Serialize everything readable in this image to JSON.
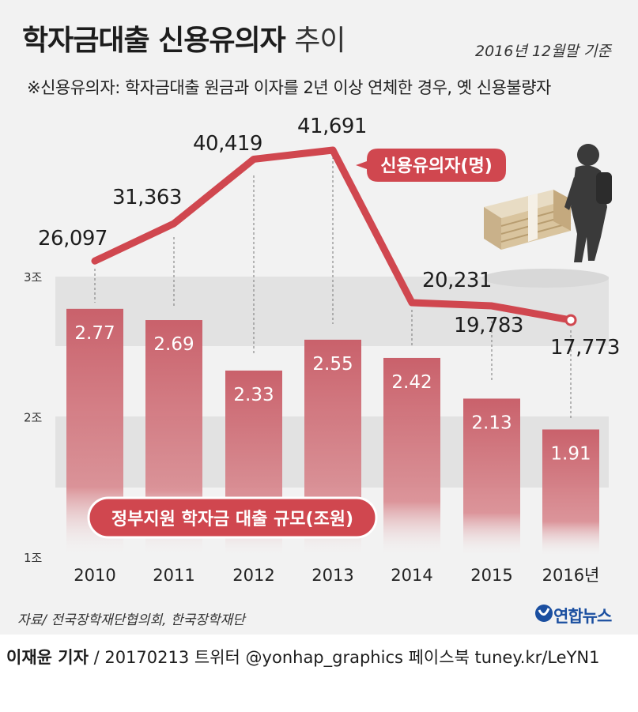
{
  "title_bold": "학자금대출 신용유의자",
  "title_light": "추이",
  "basis": "2016년 12월말 기준",
  "note": "※신용유의자: 학자금대출 원금과 이자를 2년 이상 연체한 경우, 옛 신용불량자",
  "source": "자료/ 전국장학재단협의회, 한국장학재단",
  "logo": "연합뉴스",
  "credit": {
    "reporter": "이재윤 기자",
    "rest": " / 20170213   트위터 @yonhap_graphics  페이스북 tuney.kr/LeYN1"
  },
  "colors": {
    "bar": "#c9616b",
    "line": "#d0474f",
    "band": "#e2e2e2"
  },
  "icons": [
    "person-with-backpack-icon",
    "money-bundle-icon"
  ],
  "chart_data": {
    "type": "bar+line",
    "categories": [
      "2010",
      "2011",
      "2012",
      "2013",
      "2014",
      "2015",
      "2016년"
    ],
    "bar_series": {
      "name": "정부지원 학자금 대출 규모(조원)",
      "values": [
        2.77,
        2.69,
        2.33,
        2.55,
        2.42,
        2.13,
        1.91
      ],
      "labels": [
        "2.77",
        "2.69",
        "2.33",
        "2.55",
        "2.42",
        "2.13",
        "1.91"
      ]
    },
    "line_series": {
      "name": "신용유의자(명)",
      "values": [
        26097,
        31363,
        40419,
        41691,
        20231,
        19783,
        17773
      ],
      "labels": [
        "26,097",
        "31,363",
        "40,419",
        "41,691",
        "20,231",
        "19,783",
        "17,773"
      ]
    },
    "y_ticks": [
      "3조",
      "2조",
      "1조"
    ],
    "ylim": [
      1,
      3
    ]
  }
}
